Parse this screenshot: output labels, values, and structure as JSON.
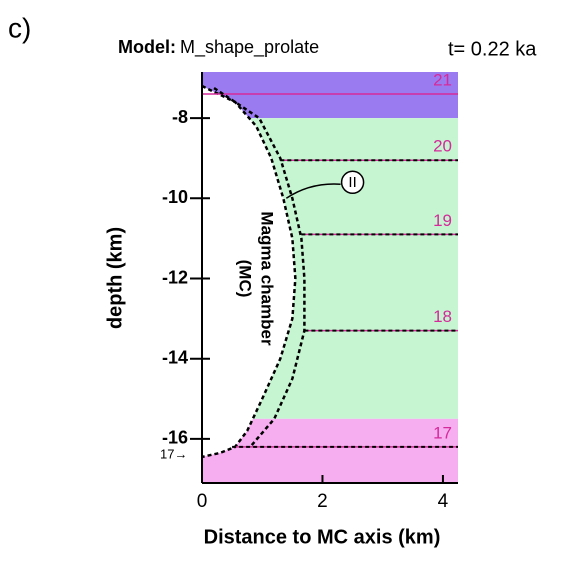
{
  "chart_data": {
    "type": "section",
    "panel_label": "c)",
    "model_label": "Model:",
    "model_name": "M_shape_prolate",
    "time_label": "t= 0.22 ka",
    "xlabel": "Distance to MC axis (km)",
    "ylabel": "depth (km)",
    "xlim": [
      0,
      4.25
    ],
    "ylim": [
      -17.1,
      -6.85
    ],
    "xticks": [
      0,
      2,
      4
    ],
    "yticks": [
      -8,
      -10,
      -12,
      -14,
      -16
    ],
    "bands": [
      {
        "top": -6.85,
        "bottom": -8,
        "color": "#9b7cf0"
      },
      {
        "top": -8,
        "bottom": -15.5,
        "color": "#c6f5d2"
      },
      {
        "top": -15.5,
        "bottom": -17.1,
        "color": "#f6aef0"
      }
    ],
    "layers": [
      {
        "label": "21",
        "depth": -7.4
      },
      {
        "label": "20",
        "depth": -9.05
      },
      {
        "label": "19",
        "depth": -10.9
      },
      {
        "label": "18",
        "depth": -13.3
      },
      {
        "label": "17",
        "depth": -16.2
      }
    ],
    "chamber_boundary": {
      "x": [
        0,
        0.55,
        0.9,
        1.15,
        1.35,
        1.5,
        1.55,
        1.5,
        1.3,
        1.0,
        0.75,
        0.55,
        0.3,
        0
      ],
      "depth": [
        -7.2,
        -7.6,
        -8.2,
        -9,
        -10,
        -11,
        -12,
        -13,
        -14,
        -15,
        -15.8,
        -16.2,
        -16.35,
        -16.45
      ]
    },
    "deformed_boundary": {
      "x": [
        0.2,
        0.95,
        1.3,
        1.5,
        1.65,
        1.7,
        1.7,
        1.5,
        1.2,
        0.8
      ],
      "depth": [
        -7.25,
        -8,
        -9,
        -10,
        -11,
        -12,
        -13.3,
        -14.5,
        -15.5,
        -16.2
      ]
    },
    "chamber_label": [
      "Magma chamber",
      "(MC)"
    ],
    "marker_label": "II",
    "side_label": "17→"
  }
}
